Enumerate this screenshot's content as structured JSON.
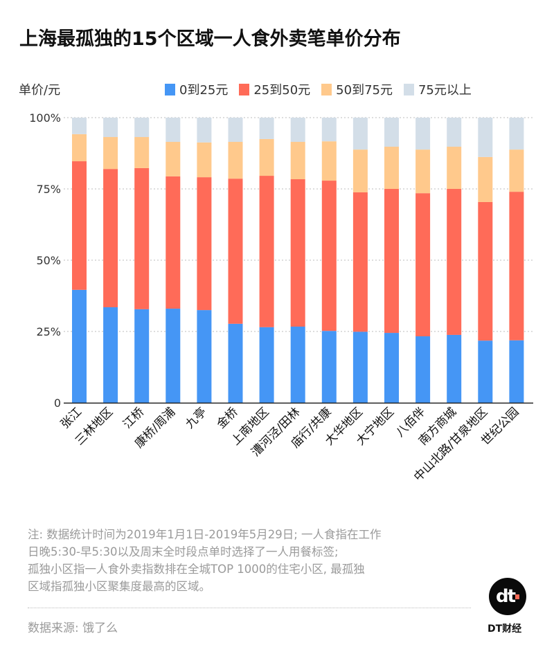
{
  "header": {
    "title": "上海最孤独的15个区域一人食外卖笔单价分布",
    "unit_label": "单价/元"
  },
  "legend": [
    {
      "label": "0到25元",
      "color": "#4596F5"
    },
    {
      "label": "25到50元",
      "color": "#FF6B58"
    },
    {
      "label": "50到75元",
      "color": "#FFC98C"
    },
    {
      "label": "75元以上",
      "color": "#D3DEE8"
    }
  ],
  "chart_data": {
    "type": "bar",
    "stacked": true,
    "title": "上海最孤独的15个区域一人食外卖笔单价分布",
    "xlabel": "",
    "ylabel": "单价/元",
    "ylim": [
      0,
      100
    ],
    "yticks": [
      {
        "value": 0,
        "label": "0"
      },
      {
        "value": 25,
        "label": "25%"
      },
      {
        "value": 50,
        "label": "50%"
      },
      {
        "value": 75,
        "label": "75%"
      },
      {
        "value": 100,
        "label": "100%"
      }
    ],
    "grid": true,
    "legend_position": "top-right",
    "categories": [
      "张江",
      "三林地区",
      "江桥",
      "康桥/周浦",
      "九亭",
      "金桥",
      "上南地区",
      "漕河泾/田林",
      "庙行/共康",
      "大华地区",
      "大宁地区",
      "八佰伴",
      "南方商城",
      "中山北路/甘泉地区",
      "世纪公园"
    ],
    "series": [
      {
        "name": "0到25元",
        "color": "#4596F5",
        "values": [
          39.6,
          33.5,
          32.8,
          33.0,
          32.5,
          27.7,
          26.5,
          26.7,
          25.2,
          24.9,
          24.5,
          23.3,
          23.8,
          21.8,
          21.9
        ]
      },
      {
        "name": "25到50元",
        "color": "#FF6B58",
        "values": [
          45.1,
          48.5,
          49.5,
          46.4,
          46.6,
          50.9,
          53.1,
          51.7,
          52.7,
          48.9,
          50.5,
          50.2,
          51.2,
          48.6,
          52.1
        ]
      },
      {
        "name": "50到75元",
        "color": "#FFC98C",
        "values": [
          9.5,
          11.2,
          10.9,
          12.1,
          12.2,
          12.9,
          12.9,
          13.1,
          13.8,
          15.0,
          14.8,
          15.3,
          14.8,
          15.8,
          14.8
        ]
      },
      {
        "name": "75元以上",
        "color": "#D3DEE8",
        "values": [
          5.8,
          6.8,
          6.8,
          8.5,
          8.7,
          8.5,
          7.5,
          8.5,
          8.3,
          11.2,
          10.2,
          11.2,
          10.2,
          13.8,
          11.2
        ]
      }
    ]
  },
  "notes": {
    "lines": [
      "注: 数据统计时间为2019年1月1日-2019年5月29日; 一人食指在工作",
      "日晚5:30-早5:30以及周末全时段点单时选择了一人用餐标签;",
      "孤独小区指一人食外卖指数排在全城TOP 1000的住宅小区, 最孤独",
      "区域指孤独小区聚集度最高的区域。"
    ]
  },
  "footer": {
    "source": "数据来源: 饿了么",
    "brand": "DT财经",
    "logo_text": "dt"
  }
}
